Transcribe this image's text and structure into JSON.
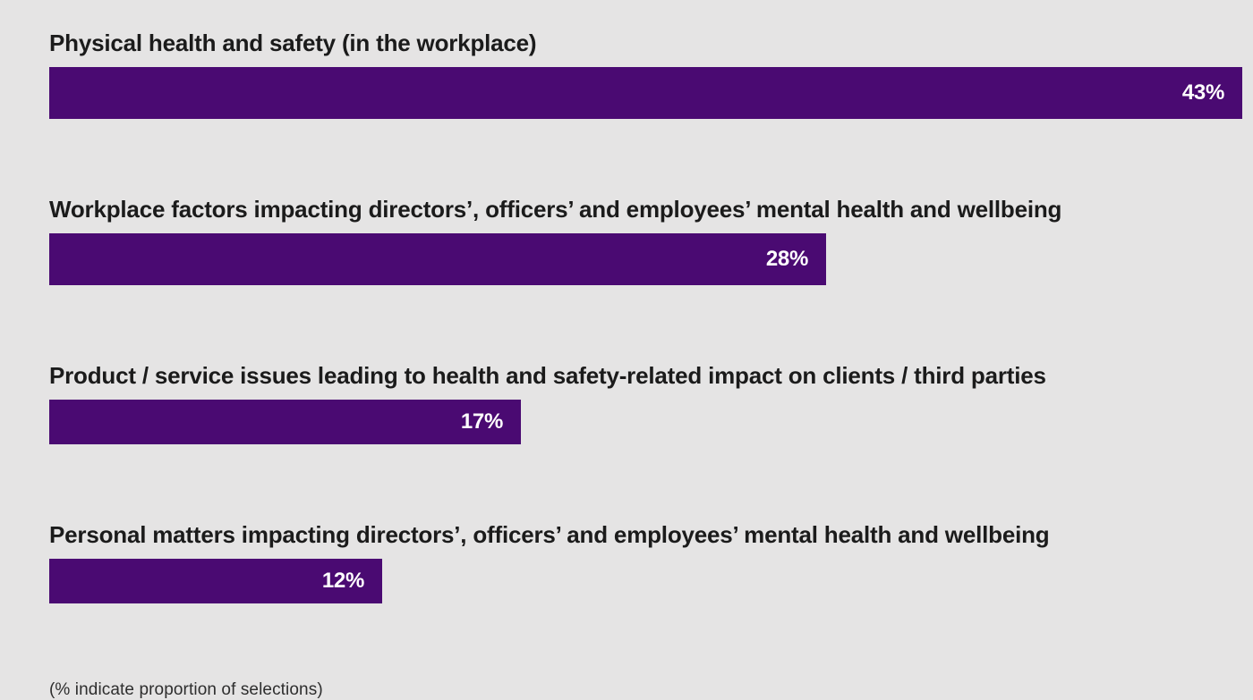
{
  "chart_data": {
    "type": "bar",
    "orientation": "horizontal",
    "title": "",
    "xlabel": "",
    "ylabel": "",
    "legend": null,
    "grid": false,
    "background_color": "#e5e4e4",
    "bar_color": "#4a0a72",
    "label_color": "#1b1b1b",
    "value_label_color": "#ffffff",
    "scale": {
      "max_value": 43
    },
    "categories": [
      "Physical health and safety (in the workplace)",
      "Workplace factors impacting directors’, officers’ and employees’ mental health and wellbeing",
      "Product / service issues leading to health and safety-related impact on clients / third parties",
      "Personal matters impacting directors’, officers’ and employees’ mental health and wellbeing"
    ],
    "values": [
      43,
      28,
      17,
      12
    ],
    "bars": [
      {
        "label": "Physical health and safety (in the workplace)",
        "value": 43,
        "value_label": "43%"
      },
      {
        "label": "Workplace factors impacting directors’, officers’ and employees’ mental health and wellbeing",
        "value": 28,
        "value_label": "28%"
      },
      {
        "label": "Product / service issues leading to health and safety-related impact on clients / third parties",
        "value": 17,
        "value_label": "17%"
      },
      {
        "label": "Personal matters impacting directors’, officers’ and employees’ mental health and wellbeing",
        "value": 12,
        "value_label": "12%"
      }
    ],
    "footnote": "(% indicate proportion of selections)"
  }
}
